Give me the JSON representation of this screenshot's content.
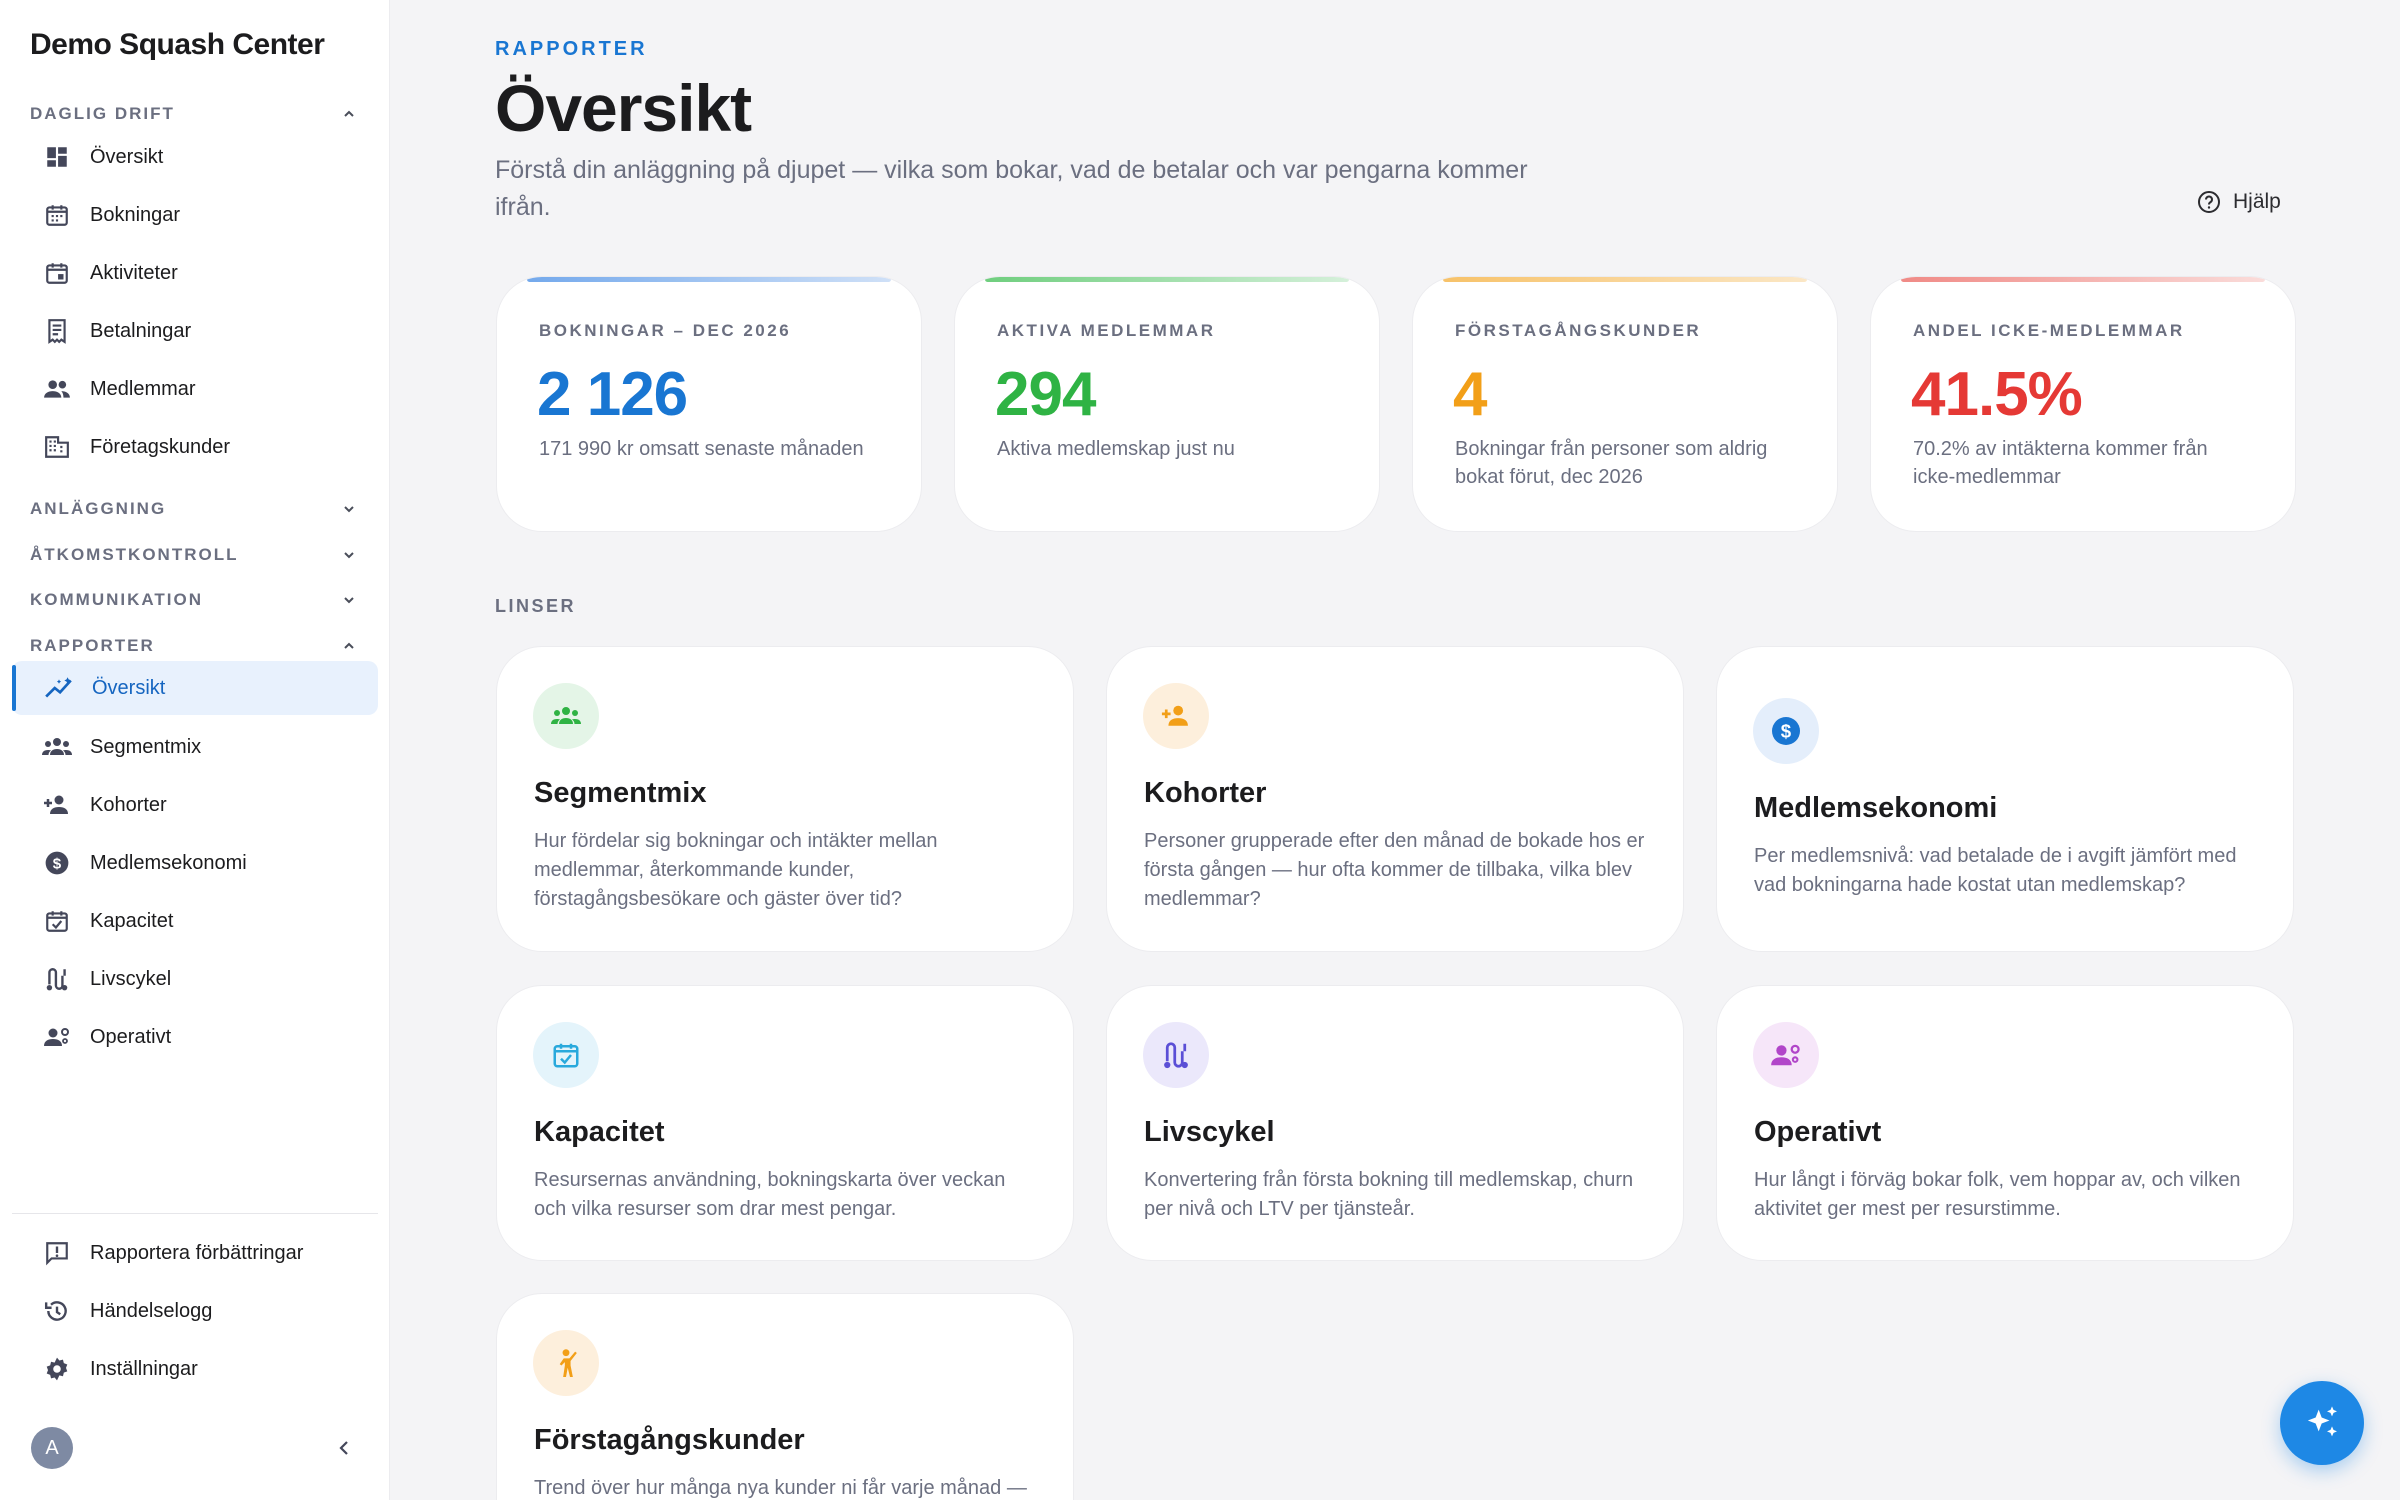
{
  "brand": "Demo Squash Center",
  "sidebar": {
    "sections": {
      "daglig": "DAGLIG DRIFT",
      "anlaggning": "ANLÄGGNING",
      "atkomst": "ÅTKOMSTKONTROLL",
      "kommunikation": "KOMMUNIKATION",
      "rapporter": "RAPPORTER"
    },
    "daily_items": [
      "Översikt",
      "Bokningar",
      "Aktiviteter",
      "Betalningar",
      "Medlemmar",
      "Företagskunder"
    ],
    "report_items": [
      "Översikt",
      "Segmentmix",
      "Kohorter",
      "Medlemsekonomi",
      "Kapacitet",
      "Livscykel",
      "Operativt"
    ],
    "footer_items": [
      "Rapportera förbättringar",
      "Händelselogg",
      "Inställningar"
    ],
    "avatar_initial": "A"
  },
  "header": {
    "eyebrow": "RAPPORTER",
    "title": "Översikt",
    "subtitle": "Förstå din anläggning på djupet — vilka som bokar, vad de betalar och var pengarna kommer ifrån.",
    "help": "Hjälp"
  },
  "kpis": [
    {
      "label": "BOKNINGAR – DEC 2026",
      "value": "2 126",
      "sub": "171 990 kr omsatt senaste månaden",
      "color": "#1976d2"
    },
    {
      "label": "AKTIVA MEDLEMMAR",
      "value": "294",
      "sub": "Aktiva medlemskap just nu",
      "color": "#2fb344"
    },
    {
      "label": "FÖRSTAGÅNGSKUNDER",
      "value": "4",
      "sub": "Bokningar från personer som aldrig bokat förut, dec 2026",
      "color": "#f29f18"
    },
    {
      "label": "ANDEL ICKE-MEDLEMMAR",
      "value": "41.5%",
      "sub": "70.2% av intäkterna kommer från icke-medlemmar",
      "color": "#e53935"
    }
  ],
  "lenses_label": "LINSER",
  "cards": [
    {
      "title": "Segmentmix",
      "desc": "Hur fördelar sig bokningar och intäkter mellan medlemmar, återkommande kunder, förstagångsbesökare och gäster över tid?"
    },
    {
      "title": "Kohorter",
      "desc": "Personer grupperade efter den månad de bokade hos er första gången — hur ofta kommer de tillbaka, vilka blev medlemmar?"
    },
    {
      "title": "Medlemsekonomi",
      "desc": "Per medlemsnivå: vad betalade de i avgift jämfört med vad bokningarna hade kostat utan medlemskap?"
    },
    {
      "title": "Kapacitet",
      "desc": "Resursernas användning, bokningskarta över veckan och vilka resurser som drar mest pengar."
    },
    {
      "title": "Livscykel",
      "desc": "Konvertering från första bokning till medlemskap, churn per nivå och LTV per tjänsteår."
    },
    {
      "title": "Operativt",
      "desc": "Hur långt i förväg bokar folk, vem hoppar av, och vilken aktivitet ger mest per resurstimme."
    },
    {
      "title": "Förstagångskunder",
      "desc": "Trend över hur många nya kunder ni får varje månad —"
    }
  ]
}
